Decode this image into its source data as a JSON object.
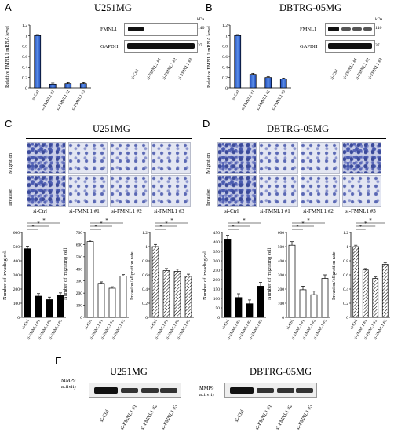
{
  "panels": {
    "A": "A",
    "B": "B",
    "C": "C",
    "D": "D",
    "E": "E"
  },
  "titles": {
    "u251": "U251MG",
    "dbtrg": "DBTRG-05MG"
  },
  "kda": "kDa",
  "markers": {
    "m140": "140",
    "m37": "37"
  },
  "blot_labels": {
    "fmnl1": "FMNL1",
    "gapdh": "GAPDH"
  },
  "groups": [
    "si-Ctrl",
    "si-FMNL1 #1",
    "si-FMNL1 #2",
    "si-FMNL1 #3"
  ],
  "groups_short": [
    "si-Ctrl",
    "si-FMNL1 #1",
    "si-FMNL1 #2",
    "si-FMNL1 #3"
  ],
  "mrna_axis": {
    "label": "Relative FMNL1 mRNA level",
    "ticks": [
      "1.2",
      "1",
      "0.8",
      "0.6",
      "0.4",
      "0.2",
      "0"
    ]
  },
  "row_labels": {
    "migration": "Migration",
    "invasion": "Invasion"
  },
  "c_ylabels": {
    "invading": "Number of invading cell",
    "migrating": "Number of migrating cell",
    "rate": "Invasion/Migration rate"
  },
  "ticks": {
    "inv600": [
      "600",
      "500",
      "400",
      "300",
      "200",
      "100",
      "0"
    ],
    "mig700": [
      "700",
      "600",
      "500",
      "400",
      "300",
      "200",
      "100",
      "0"
    ],
    "inv450": [
      "450",
      "400",
      "350",
      "300",
      "250",
      "200",
      "150",
      "100",
      "50",
      "0"
    ],
    "mig600": [
      "600",
      "500",
      "400",
      "300",
      "200",
      "100",
      "0"
    ],
    "rate12": [
      "1.2",
      "1",
      "0.8",
      "0.6",
      "0.4",
      "0.2",
      "0"
    ]
  },
  "star": "*",
  "mmp9": "MMP9 activity",
  "chart_data": [
    {
      "type": "bar",
      "panel": "A",
      "title": "U251MG",
      "ylabel": "Relative FMNL1 mRNA level",
      "categories": [
        "si-Ctrl",
        "si-FMNL1 #1",
        "si-FMNL1 #2",
        "si-FMNL1 #3"
      ],
      "values": [
        1.0,
        0.07,
        0.08,
        0.08
      ],
      "ylim": [
        0,
        1.2
      ]
    },
    {
      "type": "bar",
      "panel": "B",
      "title": "DBTRG-05MG",
      "ylabel": "Relative FMNL1 mRNA level",
      "categories": [
        "si-Ctrl",
        "si-FMNL1 #1",
        "si-FMNL1 #2",
        "si-FMNL1 #3"
      ],
      "values": [
        1.0,
        0.26,
        0.2,
        0.17
      ],
      "ylim": [
        0,
        1.2
      ]
    },
    {
      "type": "bar",
      "panel": "C",
      "ylabel": "Number of invading cell",
      "categories": [
        "si-Ctrl",
        "si-FMNL1 #1",
        "si-FMNL1 #2",
        "si-FMNL1 #3"
      ],
      "values": [
        485,
        150,
        125,
        155
      ],
      "ylim": [
        0,
        600
      ]
    },
    {
      "type": "bar",
      "panel": "C",
      "ylabel": "Number of migrating cell",
      "categories": [
        "si-Ctrl",
        "si-FMNL1 #1",
        "si-FMNL1 #2",
        "si-FMNL1 #3"
      ],
      "values": [
        625,
        280,
        240,
        340
      ],
      "ylim": [
        0,
        700
      ]
    },
    {
      "type": "bar",
      "panel": "C",
      "ylabel": "Invasion/Migration rate",
      "categories": [
        "si-Ctrl",
        "si-FMNL1 #1",
        "si-FMNL1 #2",
        "si-FMNL1 #3"
      ],
      "values": [
        1.0,
        0.66,
        0.65,
        0.58
      ],
      "ylim": [
        0,
        1.2
      ]
    },
    {
      "type": "bar",
      "panel": "D",
      "ylabel": "Number of invading cell",
      "categories": [
        "si-Ctrl",
        "si-FMNL1 #1",
        "si-FMNL1 #2",
        "si-FMNL1 #3"
      ],
      "values": [
        415,
        105,
        72,
        165
      ],
      "ylim": [
        0,
        450
      ]
    },
    {
      "type": "bar",
      "panel": "D",
      "ylabel": "Number of migrating cell",
      "categories": [
        "si-Ctrl",
        "si-FMNL1 #1",
        "si-FMNL1 #2",
        "si-FMNL1 #3"
      ],
      "values": [
        510,
        195,
        160,
        275
      ],
      "ylim": [
        0,
        600
      ]
    },
    {
      "type": "bar",
      "panel": "D",
      "ylabel": "Invasion/Migration rate",
      "categories": [
        "si-Ctrl",
        "si-FMNL1 #1",
        "si-FMNL1 #2",
        "si-FMNL1 #3"
      ],
      "values": [
        1.0,
        0.67,
        0.55,
        0.75
      ],
      "ylim": [
        0,
        1.2
      ]
    }
  ]
}
